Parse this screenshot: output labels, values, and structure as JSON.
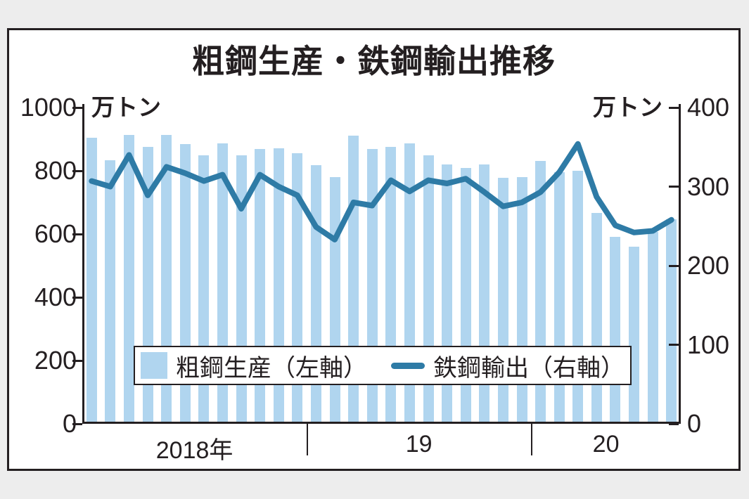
{
  "chart_data": {
    "type": "bar+line combo, monthly",
    "title": "粗鋼生産・鉄鋼輸出推移",
    "x_years": [
      {
        "label": "2018年",
        "months": 12
      },
      {
        "label": "19",
        "months": 12
      },
      {
        "label": "20",
        "months": 8
      }
    ],
    "series": [
      {
        "name": "粗鋼生産（左軸）",
        "type": "bar",
        "axis": "left",
        "color": "#b0d5ef",
        "values": [
          905,
          833,
          913,
          876,
          913,
          884,
          850,
          886,
          850,
          868,
          871,
          856,
          819,
          780,
          912,
          870,
          876,
          886,
          848,
          821,
          810,
          821,
          777,
          781,
          831,
          796,
          800,
          666,
          592,
          560,
          607,
          646
        ]
      },
      {
        "name": "鉄鋼輸出（右軸）",
        "type": "line",
        "axis": "right",
        "color": "#2e7ba6",
        "values": [
          307,
          300,
          340,
          289,
          325,
          317,
          307,
          315,
          272,
          315,
          300,
          289,
          249,
          233,
          280,
          276,
          308,
          294,
          308,
          304,
          310,
          293,
          275,
          280,
          293,
          318,
          354,
          287,
          251,
          242,
          244,
          258
        ]
      }
    ],
    "left_axis": {
      "unit": "万トン",
      "min": 0,
      "max": 1000,
      "tick_step": 200,
      "ticks": [
        0,
        200,
        400,
        600,
        800,
        1000
      ]
    },
    "right_axis": {
      "unit": "万トン",
      "min": 0,
      "max": 400,
      "tick_step": 100,
      "ticks": [
        0,
        100,
        200,
        300,
        400
      ]
    },
    "layout": {
      "grid": false,
      "legend_position": "inside lower-center",
      "frame_border_color": "#241f21",
      "background": "#ffffff",
      "page_background": "#ededed"
    }
  }
}
